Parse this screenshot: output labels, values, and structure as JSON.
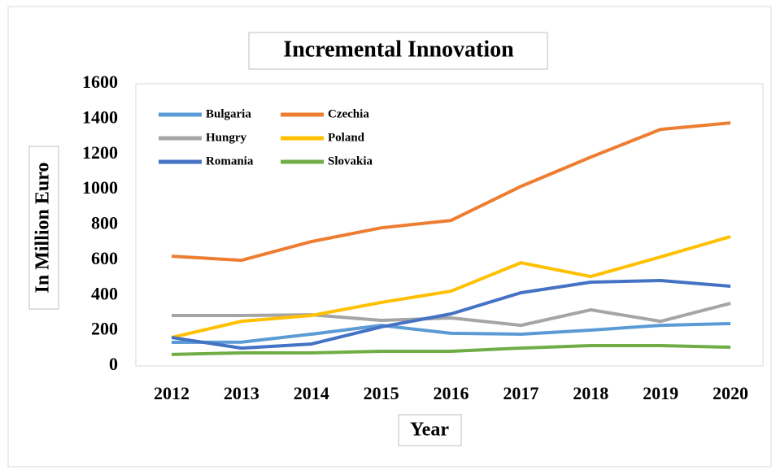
{
  "chart_data": {
    "type": "line",
    "title": "Incremental Innovation",
    "x_label": "Year",
    "y_label": "In Million Euro",
    "categories": [
      "2012",
      "2013",
      "2014",
      "2015",
      "2016",
      "2017",
      "2018",
      "2019",
      "2020"
    ],
    "series": [
      {
        "name": "Bulgaria",
        "color": "#5b9bd5",
        "values": [
          134,
          135,
          180,
          230,
          185,
          180,
          203,
          230,
          240
        ]
      },
      {
        "name": "Czechia",
        "color": "#ed7d31",
        "values": [
          622,
          599,
          705,
          783,
          825,
          1018,
          1184,
          1341,
          1378
        ]
      },
      {
        "name": "Hungry",
        "color": "#a5a5a5",
        "values": [
          286,
          286,
          290,
          258,
          272,
          230,
          318,
          253,
          355
        ]
      },
      {
        "name": "Poland",
        "color": "#ffc000",
        "values": [
          161,
          253,
          286,
          360,
          424,
          585,
          507,
          618,
          733
        ]
      },
      {
        "name": "Romania",
        "color": "#4472c4",
        "values": [
          161,
          101,
          124,
          221,
          295,
          415,
          475,
          484,
          452
        ]
      },
      {
        "name": "Slovakia",
        "color": "#70ad47",
        "values": [
          65,
          74,
          74,
          83,
          83,
          101,
          115,
          115,
          106
        ]
      }
    ],
    "ylim": [
      0,
      1600
    ],
    "yticks": [
      0,
      200,
      400,
      600,
      800,
      1000,
      1200,
      1400,
      1600
    ],
    "grid": false,
    "legend": "top-left"
  }
}
